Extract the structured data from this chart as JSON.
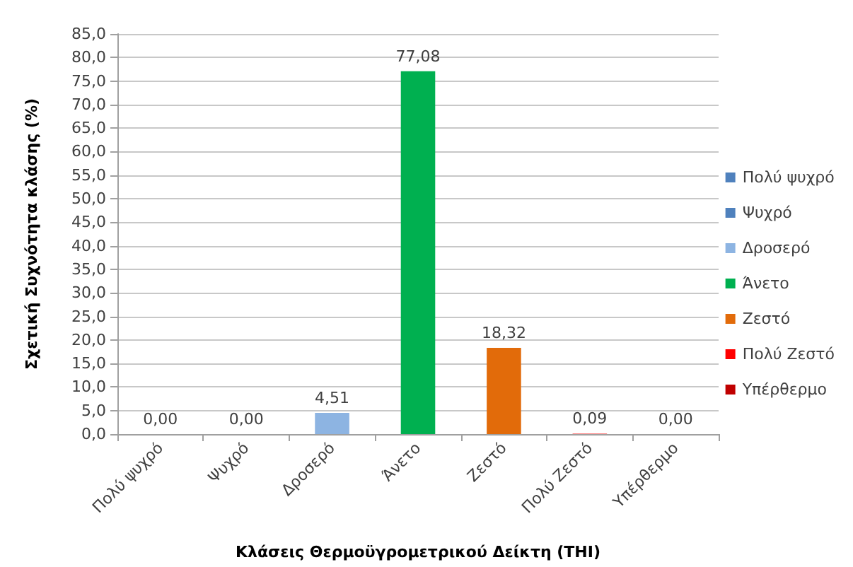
{
  "chart_data": {
    "type": "bar",
    "xlabel": "Κλάσεις Θερμοϋγρομετρικού Δείκτη (THI)",
    "ylabel": "Σχετική Συχνότητα κλάσης (%)",
    "categories": [
      "Πολύ ψυχρό",
      "Ψυχρό",
      "Δροσερό",
      "Άνετο",
      "Ζεστό",
      "Πολύ Ζεστό",
      "Υπέρθερμο"
    ],
    "stacked": true,
    "series": [
      {
        "name": "Πολύ ψυχρό",
        "color": "#4f81bd",
        "values": [
          0.0,
          null,
          null,
          null,
          null,
          null,
          null
        ],
        "value_labels": [
          "0,00",
          null,
          null,
          null,
          null,
          null,
          null
        ]
      },
      {
        "name": "Ψυχρό",
        "color": "#4f81bd",
        "values": [
          null,
          0.0,
          null,
          null,
          null,
          null,
          null
        ],
        "value_labels": [
          null,
          "0,00",
          null,
          null,
          null,
          null,
          null
        ]
      },
      {
        "name": "Δροσερό",
        "color": "#8db4e2",
        "values": [
          null,
          null,
          4.51,
          null,
          null,
          null,
          null
        ],
        "value_labels": [
          null,
          null,
          "4,51",
          null,
          null,
          null,
          null
        ]
      },
      {
        "name": "Άνετο",
        "color": "#00b050",
        "values": [
          null,
          null,
          null,
          77.08,
          null,
          null,
          null
        ],
        "value_labels": [
          null,
          null,
          null,
          "77,08",
          null,
          null,
          null
        ]
      },
      {
        "name": "Ζεστό",
        "color": "#e26b0a",
        "values": [
          null,
          null,
          null,
          null,
          18.32,
          null,
          null
        ],
        "value_labels": [
          null,
          null,
          null,
          null,
          "18,32",
          null,
          null
        ]
      },
      {
        "name": "Πολύ Ζεστό",
        "color": "#ff0000",
        "values": [
          null,
          null,
          null,
          null,
          null,
          0.09,
          null
        ],
        "value_labels": [
          null,
          null,
          null,
          null,
          null,
          "0,09",
          null
        ]
      },
      {
        "name": "Υπέρθερμο",
        "color": "#c00000",
        "values": [
          null,
          null,
          null,
          null,
          null,
          null,
          0.0
        ],
        "value_labels": [
          null,
          null,
          null,
          null,
          null,
          null,
          "0,00"
        ]
      }
    ],
    "ylim": [
      0,
      85
    ],
    "yticks": [
      {
        "value": 0,
        "label": "0,0"
      },
      {
        "value": 5,
        "label": "5,0"
      },
      {
        "value": 10,
        "label": "10,0"
      },
      {
        "value": 15,
        "label": "15,0"
      },
      {
        "value": 20,
        "label": "20,0"
      },
      {
        "value": 25,
        "label": "25,0"
      },
      {
        "value": 30,
        "label": "30,0"
      },
      {
        "value": 35,
        "label": "35,0"
      },
      {
        "value": 40,
        "label": "40,0"
      },
      {
        "value": 45,
        "label": "45,0"
      },
      {
        "value": 50,
        "label": "50,0"
      },
      {
        "value": 55,
        "label": "55,0"
      },
      {
        "value": 60,
        "label": "60,0"
      },
      {
        "value": 65,
        "label": "65,0"
      },
      {
        "value": 70,
        "label": "70,0"
      },
      {
        "value": 75,
        "label": "75,0"
      },
      {
        "value": 80,
        "label": "80,0"
      },
      {
        "value": 85,
        "label": "85,0"
      }
    ],
    "grid": "y",
    "legend": "right"
  }
}
